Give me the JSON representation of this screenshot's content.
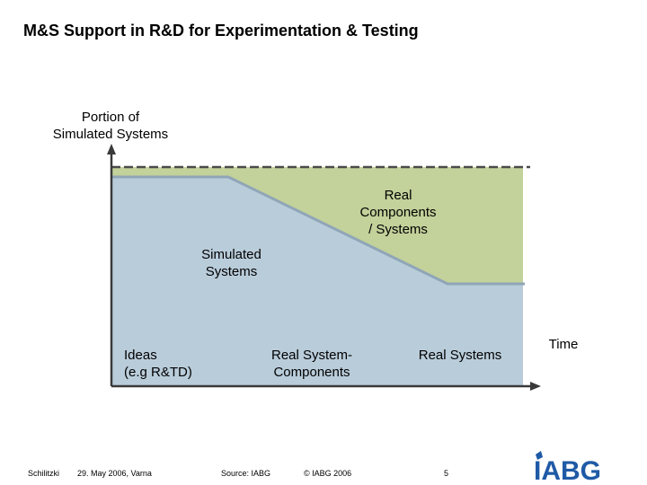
{
  "title": "M&S Support in R&D for Experimentation & Testing",
  "chart_data": {
    "type": "area",
    "ylabel": "Portion of\nSimulated Systems",
    "xlabel": "Time",
    "stages": [
      "Ideas\n(e.g R&TD)",
      "Real System-\nComponents",
      "Real Systems"
    ],
    "areas": [
      {
        "label": "Real\nComponents\n/ Systems",
        "color": "#c3d19a"
      },
      {
        "label": "Simulated\nSystems",
        "color": "#b9ccda"
      }
    ],
    "simulated_line_color": "#8fa6b8",
    "total_line_color": "#4a4a4a",
    "grid": false
  },
  "footer": {
    "author": "Schilitzki",
    "date": "29. May 2006, Varna",
    "source": "Source:  IABG",
    "copyright": "© IABG 2006",
    "page": "5"
  },
  "logo": {
    "text": "IABG",
    "color": "#1f5aa6"
  }
}
